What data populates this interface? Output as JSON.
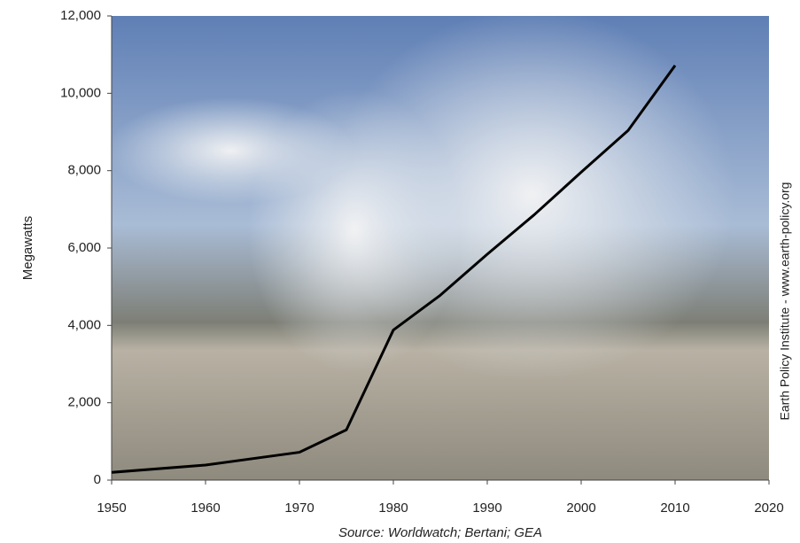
{
  "chart_data": {
    "type": "line",
    "ylabel": "Megawatts",
    "source": "Source: Worldwatch; Bertani; GEA",
    "credit": "Earth Policy Institute - www.earth-policy.org",
    "x": [
      1950,
      1960,
      1970,
      1975,
      1980,
      1985,
      1990,
      1995,
      2000,
      2005,
      2010
    ],
    "series": [
      {
        "color": "#000000",
        "values": [
          200,
          390,
          720,
          1300,
          3880,
          4780,
          5840,
          6860,
          7960,
          9040,
          10720
        ]
      }
    ],
    "xlim": [
      1950,
      2020
    ],
    "xticks": [
      1950,
      1960,
      1970,
      1980,
      1990,
      2000,
      2010,
      2020
    ],
    "ylim": [
      0,
      12000
    ],
    "yticks": [
      0,
      {
        "value": 2000,
        "label": "2,000"
      },
      {
        "value": 4000,
        "label": "4,000"
      },
      {
        "value": 6000,
        "label": "6,000"
      },
      {
        "value": 8000,
        "label": "8,000"
      },
      {
        "value": 10000,
        "label": "10,000"
      },
      {
        "value": 12000,
        "label": "12,000"
      }
    ]
  }
}
